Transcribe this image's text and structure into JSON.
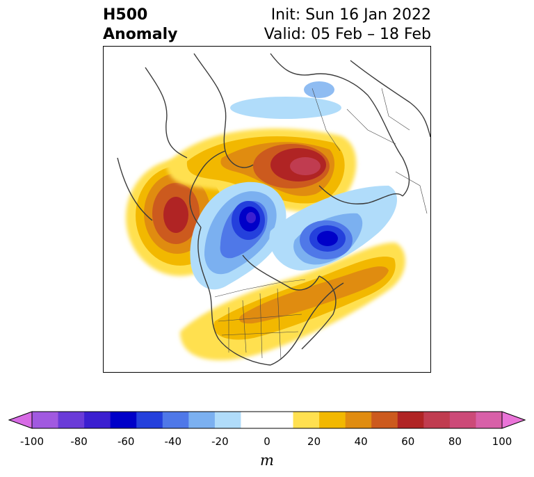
{
  "title": {
    "left_line1": "H500",
    "left_line2": "Anomaly",
    "right_line1": "Init: Sun 16 Jan 2022",
    "right_line2": "Valid: 05 Feb – 18 Feb"
  },
  "colorbar": {
    "unit": "m",
    "tick_labels": [
      "-100",
      "-80",
      "-60",
      "-40",
      "-20",
      "0",
      "20",
      "40",
      "60",
      "80",
      "100"
    ],
    "under_color": "#d76be5",
    "over_color": "#ea74d8",
    "colors": [
      "#a159e0",
      "#6a3bd8",
      "#3b1fd0",
      "#0000c8",
      "#2440dc",
      "#4f78e8",
      "#7bb0f0",
      "#b0dcfa",
      "#ffffff",
      "#ffffff",
      "#ffe050",
      "#f2b800",
      "#e08c10",
      "#cc5a1e",
      "#b02424",
      "#c03c50",
      "#cc4a78",
      "#d860a8"
    ]
  },
  "colors": {
    "continent_outline": "#3a3a3a"
  }
}
